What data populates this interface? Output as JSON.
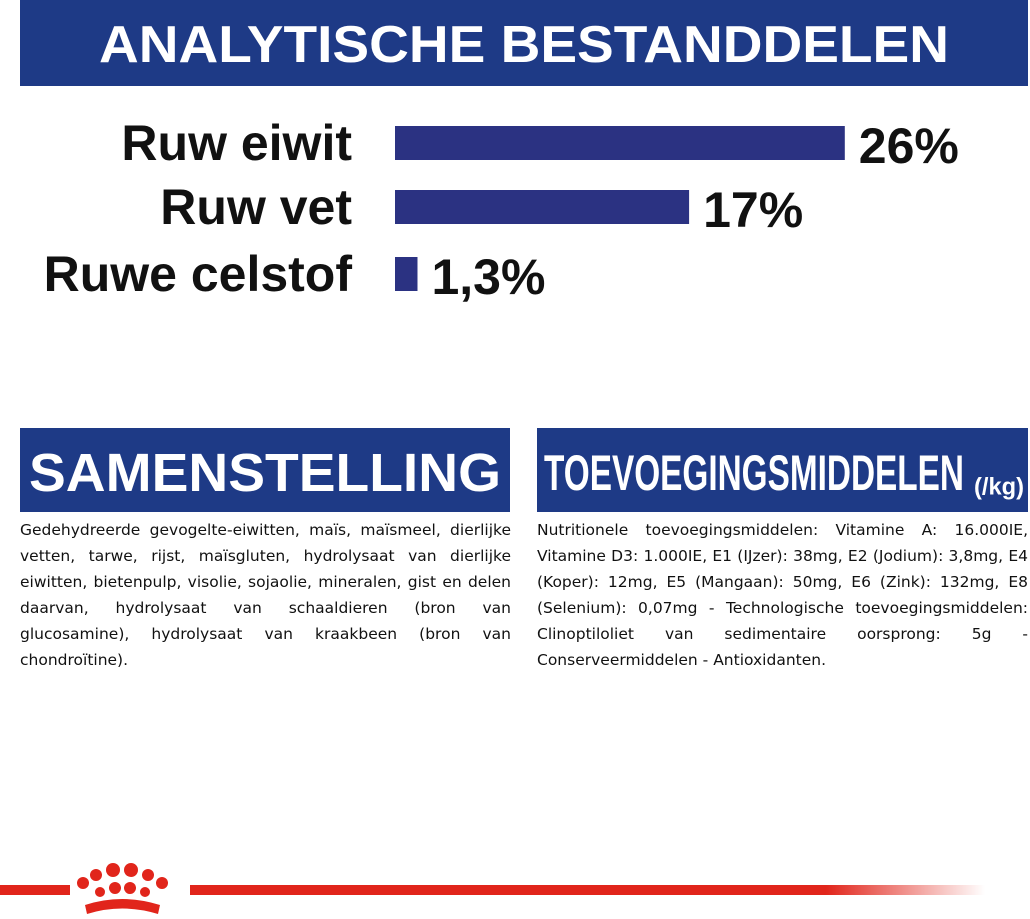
{
  "header": {
    "title": "ANALYTISCHE BESTANDDELEN"
  },
  "chart_data": {
    "type": "bar",
    "orientation": "horizontal",
    "categories": [
      "Ruw eiwit",
      "Ruw vet",
      "Ruwe celstof"
    ],
    "values": [
      26,
      17,
      1.3
    ],
    "value_labels": [
      "26%",
      "17%",
      "1,3%"
    ],
    "color": "#2b3282"
  },
  "sections": [
    {
      "title": "SAMENSTELLING",
      "text": "Gedehydreerde gevogelte-eiwitten, maïs, maïsmeel, dierlijke vetten, tarwe, rijst, maïsgluten, hydrolysaat van dierlijke eiwitten, bietenpulp, visolie, sojaolie, mineralen, gist en delen daarvan, hydrolysaat van schaaldieren (bron van glucosamine), hydrolysaat van kraakbeen (bron van chondroïtine)."
    },
    {
      "title": "TOEVOEGINGSMIDDELEN",
      "unit": "(/kg)",
      "text": "Nutritionele toevoegingsmiddelen: Vitamine A: 16.000IE, Vitamine D3: 1.000IE, E1 (IJzer): 38mg, E2 (Jodium): 3,8mg, E4 (Koper): 12mg, E5 (Mangaan): 50mg, E6 (Zink): 132mg, E8 (Selenium): 0,07mg - Technologische toevoegingsmiddelen: Clinoptiloliet van sedimentaire oorsprong: 5g - Conserveermiddelen - Antioxidanten."
    }
  ]
}
